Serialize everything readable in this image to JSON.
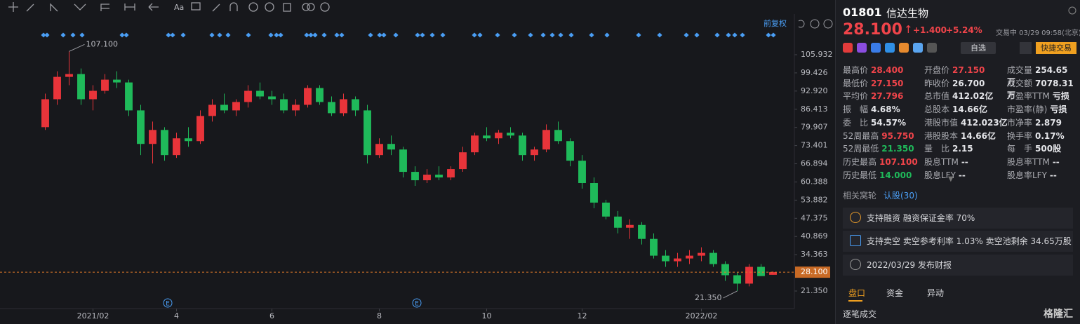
{
  "chart_data": {
    "type": "candlestick",
    "ohlc": [
      [
        80,
        92,
        79,
        90
      ],
      [
        90,
        100,
        88,
        98
      ],
      [
        98,
        107.1,
        95,
        99
      ],
      [
        99,
        101,
        88,
        90
      ],
      [
        90,
        95,
        86,
        93
      ],
      [
        93,
        99,
        92,
        97
      ],
      [
        97,
        100,
        94,
        96
      ],
      [
        96,
        97,
        84,
        86
      ],
      [
        86,
        88,
        70,
        74
      ],
      [
        74,
        82,
        67,
        79
      ],
      [
        79,
        80,
        68,
        70
      ],
      [
        70,
        78,
        69,
        76
      ],
      [
        76,
        80,
        73,
        75
      ],
      [
        75,
        86,
        74,
        84
      ],
      [
        84,
        90,
        82,
        88
      ],
      [
        88,
        92,
        85,
        86
      ],
      [
        86,
        90,
        84,
        89
      ],
      [
        89,
        95,
        87,
        93
      ],
      [
        93,
        96,
        90,
        91
      ],
      [
        91,
        93,
        88,
        90
      ],
      [
        90,
        92,
        85,
        86
      ],
      [
        86,
        90,
        84,
        88
      ],
      [
        88,
        95,
        87,
        94
      ],
      [
        94,
        95,
        88,
        89
      ],
      [
        89,
        91,
        84,
        85
      ],
      [
        85,
        92,
        84,
        90
      ],
      [
        90,
        91,
        84,
        86
      ],
      [
        86,
        88,
        67,
        70
      ],
      [
        70,
        76,
        69,
        74
      ],
      [
        74,
        77,
        70,
        72
      ],
      [
        72,
        73,
        62,
        64
      ],
      [
        64,
        66,
        59,
        61
      ],
      [
        61,
        65,
        60,
        63
      ],
      [
        63,
        66,
        61,
        62
      ],
      [
        62,
        66,
        61,
        65
      ],
      [
        65,
        73,
        64,
        71
      ],
      [
        71,
        78,
        70,
        77
      ],
      [
        77,
        80,
        75,
        76
      ],
      [
        76,
        79,
        74,
        78
      ],
      [
        78,
        80,
        76,
        77
      ],
      [
        77,
        78,
        68,
        70
      ],
      [
        70,
        73,
        68,
        72
      ],
      [
        72,
        81,
        71,
        79
      ],
      [
        79,
        82,
        74,
        75
      ],
      [
        75,
        76,
        66,
        68
      ],
      [
        68,
        70,
        58,
        60
      ],
      [
        60,
        62,
        51,
        53
      ],
      [
        53,
        54,
        47,
        48
      ],
      [
        48,
        50,
        42,
        44
      ],
      [
        44,
        47,
        40,
        45
      ],
      [
        45,
        46,
        38,
        40
      ],
      [
        40,
        42,
        33,
        34
      ],
      [
        34,
        36,
        30,
        32
      ],
      [
        32,
        35,
        30,
        33
      ],
      [
        33,
        36,
        31,
        34
      ],
      [
        34,
        37,
        32,
        35
      ],
      [
        35,
        36,
        30,
        31
      ],
      [
        31,
        32,
        25,
        27
      ],
      [
        27,
        28,
        21.35,
        24
      ],
      [
        24,
        31,
        23,
        30
      ],
      [
        30,
        31,
        26.7,
        26.7
      ],
      [
        27.15,
        28.4,
        27.15,
        28.1
      ]
    ],
    "up_color": "#e8343a",
    "down_color": "#1fba5a",
    "ylim": [
      15.07,
      120.49
    ],
    "yticks": [
      105.932,
      99.426,
      {
        "value": 92.92,
        "label": "92.920"
      },
      86.413,
      79.907,
      73.401,
      66.894,
      60.388,
      53.882,
      47.375,
      40.869,
      34.363,
      {
        "value": 21.35,
        "label": "21.350"
      }
    ],
    "xticks": [
      {
        "value": 4,
        "label": "2021/02"
      },
      {
        "value": 11,
        "label": "4"
      },
      {
        "value": 19,
        "label": "6"
      },
      {
        "value": 28,
        "label": "8"
      },
      {
        "value": 37,
        "label": "10"
      },
      {
        "value": 45,
        "label": "12"
      },
      {
        "value": 55,
        "label": "2022/02"
      }
    ],
    "high_label": {
      "value": 107.1,
      "label": "107.100"
    },
    "low_label": {
      "value": 21.35,
      "label": "21.350"
    },
    "current_price": {
      "value": 28.1,
      "label": "28.100"
    },
    "adjust_label": "前复权",
    "events": [
      "E",
      "E"
    ]
  },
  "toolbar_text": "Aa",
  "quote": {
    "code": "01801",
    "name": "信达生物",
    "price": "28.100",
    "change": "+1.400",
    "change_pct": "+5.24%",
    "status": "交易中 03/29 09:58(北京)",
    "watch": "自选",
    "trade": "快捷交易"
  },
  "stats": [
    [
      {
        "label": "最高价",
        "value": "28.400",
        "color": "#f0444a"
      },
      {
        "label": "开盘价",
        "value": "27.150",
        "color": "#f0444a"
      },
      {
        "label": "成交量",
        "value": "254.65万"
      }
    ],
    [
      {
        "label": "最低价",
        "value": "27.150",
        "color": "#f0444a"
      },
      {
        "label": "昨收价",
        "value": "26.700"
      },
      {
        "label": "成交额",
        "value": "7078.31万"
      }
    ],
    [
      {
        "label": "平均价",
        "value": "27.796",
        "color": "#f0444a"
      },
      {
        "label": "总市值",
        "value": "412.02亿"
      },
      {
        "label": "市盈率TTM",
        "value": "亏损"
      }
    ],
    [
      {
        "label": "振　幅",
        "value": "4.68%"
      },
      {
        "label": "总股本",
        "value": "14.66亿"
      },
      {
        "label": "市盈率(静)",
        "value": "亏损"
      }
    ],
    [
      {
        "label": "委　比",
        "value": "54.57%"
      },
      {
        "label": "港股市值",
        "value": "412.023亿"
      },
      {
        "label": "市净率",
        "value": "2.879"
      }
    ],
    [
      {
        "label": "52周最高",
        "value": "95.750",
        "color": "#f0444a"
      },
      {
        "label": "港股股本",
        "value": "14.66亿"
      },
      {
        "label": "换手率",
        "value": "0.17%"
      }
    ],
    [
      {
        "label": "52周最低",
        "value": "21.350",
        "color": "#1fba5a"
      },
      {
        "label": "量　比",
        "value": "2.15"
      },
      {
        "label": "每　手",
        "value": "500股"
      }
    ],
    [
      {
        "label": "历史最高",
        "value": "107.100",
        "color": "#f0444a"
      },
      {
        "label": "股息TTM",
        "value": "--"
      },
      {
        "label": "股息率TTM",
        "value": "--"
      }
    ],
    [
      {
        "label": "历史最低",
        "value": "14.000",
        "color": "#1fba5a"
      },
      {
        "label": "股息LFY",
        "value": "--"
      },
      {
        "label": "股息率LFY",
        "value": "--"
      }
    ]
  ],
  "warrants": {
    "label": "相关窝轮",
    "link": "认股(30)"
  },
  "notices": [
    "支持融资 融资保证金率 70%",
    "支持卖空 卖空参考利率 1.03% 卖空池剩余 34.65万股",
    "2022/03/29 发布财报"
  ],
  "tabs": [
    "盘口",
    "资金",
    "异动"
  ],
  "ticks_title": "逐笔成交",
  "logo": "格隆汇"
}
